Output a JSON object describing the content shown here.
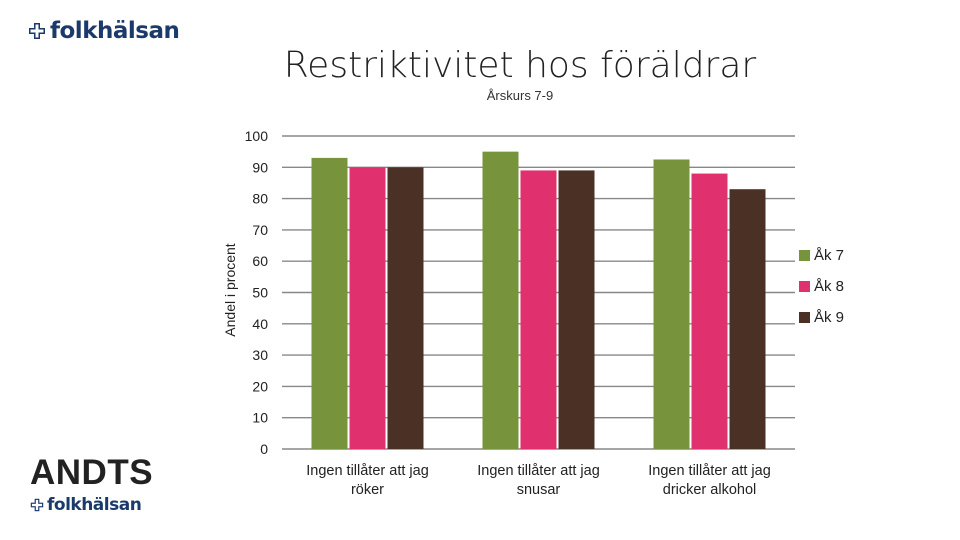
{
  "brand": {
    "name": "folkhälsan",
    "andts": "ANDTS",
    "color": "#1b3a6b"
  },
  "chart_data": {
    "type": "bar",
    "title": "Restriktivitet hos föräldrar",
    "subtitle": "Årskurs 7-9",
    "ylabel": "Andel i procent",
    "ylim": [
      0,
      100
    ],
    "yticks": [
      0,
      10,
      20,
      30,
      40,
      50,
      60,
      70,
      80,
      90,
      100
    ],
    "grid": true,
    "legend_position": "right",
    "categories": [
      [
        "Ingen tillåter att jag",
        "röker"
      ],
      [
        "Ingen tillåter att jag",
        "snusar"
      ],
      [
        "Ingen tillåter att jag",
        "dricker alkohol"
      ]
    ],
    "series": [
      {
        "name": "Åk 7",
        "color": "#77933c",
        "values": [
          93,
          95,
          92.5
        ]
      },
      {
        "name": "Åk 8",
        "color": "#e0306e",
        "values": [
          90,
          89,
          88
        ]
      },
      {
        "name": "Åk 9",
        "color": "#4a3025",
        "values": [
          90,
          89,
          83
        ]
      }
    ]
  }
}
